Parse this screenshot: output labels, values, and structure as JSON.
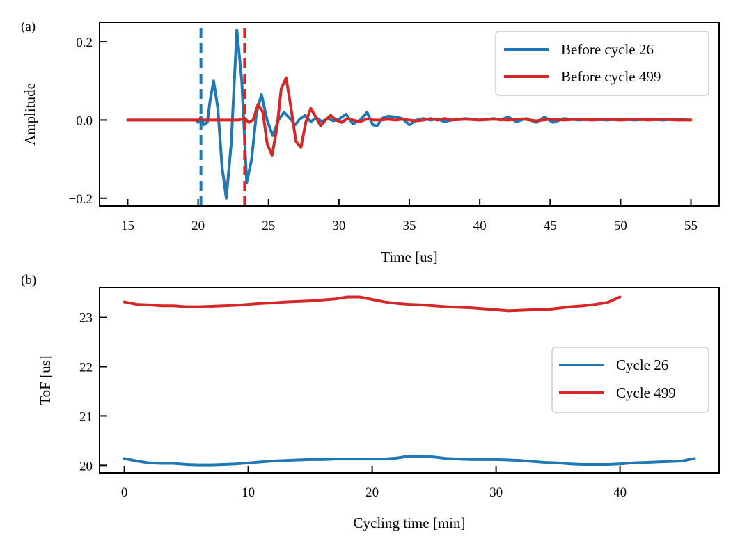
{
  "colors": {
    "blue": "#1f77b4",
    "red": "#d62728"
  },
  "chart_data": [
    {
      "type": "line",
      "panel_label": "(a)",
      "xlabel": "Time [us]",
      "ylabel": "Amplitude",
      "xlim": [
        13,
        57
      ],
      "ylim": [
        -0.22,
        0.25
      ],
      "xticks": [
        15,
        20,
        25,
        30,
        35,
        40,
        45,
        50,
        55
      ],
      "yticks": [
        -0.2,
        0.0,
        0.2
      ],
      "ytick_labels": [
        "−0.2",
        "0.0",
        "0.2"
      ],
      "legend_position": "upper-right",
      "series": [
        {
          "name": "Before cycle 26",
          "color": "#1f77b4",
          "tof_marker": 20.2,
          "x": [
            15,
            19.9,
            20.0,
            20.2,
            20.4,
            20.65,
            20.85,
            21.1,
            21.4,
            21.7,
            22.0,
            22.35,
            22.75,
            23.1,
            23.45,
            23.8,
            24.15,
            24.5,
            24.9,
            25.3,
            25.7,
            26.1,
            26.5,
            26.9,
            27.2,
            27.6,
            28.0,
            28.4,
            28.8,
            29.2,
            29.6,
            30.0,
            30.5,
            31.0,
            31.5,
            32.0,
            32.4,
            32.7,
            33.1,
            33.5,
            34.0,
            34.5,
            35.0,
            35.5,
            36.0,
            36.5,
            37.0,
            37.5,
            38.0,
            39.0,
            40.0,
            41.0,
            41.5,
            42.0,
            42.6,
            43.3,
            44.0,
            44.6,
            45.2,
            46.0,
            47.0,
            48.0,
            49.0,
            50.0,
            51.0,
            52.0,
            53.0,
            54.0,
            55.0
          ],
          "y": [
            0.0,
            0.0,
            -0.006,
            0.008,
            -0.012,
            -0.006,
            0.05,
            0.1,
            0.03,
            -0.12,
            -0.2,
            -0.06,
            0.23,
            0.1,
            -0.16,
            -0.1,
            0.02,
            0.065,
            0.0,
            -0.04,
            0.0,
            0.02,
            0.005,
            -0.012,
            0.002,
            0.012,
            -0.004,
            0.006,
            -0.004,
            0.004,
            -0.002,
            0.002,
            0.015,
            -0.01,
            0.0,
            0.02,
            -0.012,
            -0.015,
            0.005,
            0.01,
            0.008,
            0.004,
            -0.012,
            0.0,
            0.004,
            0.0,
            0.003,
            -0.004,
            0.0,
            0.004,
            0.0,
            0.004,
            0.0,
            0.008,
            -0.004,
            0.004,
            -0.006,
            0.008,
            -0.006,
            0.004,
            0.0,
            0.002,
            0.0,
            0.002,
            0.0,
            0.002,
            0.0,
            0.002,
            0.0
          ]
        },
        {
          "name": "Before cycle 499",
          "color": "#d62728",
          "tof_marker": 23.3,
          "x": [
            15,
            22.9,
            23.3,
            23.6,
            23.9,
            24.25,
            24.6,
            24.9,
            25.25,
            25.6,
            25.9,
            26.25,
            26.6,
            26.95,
            27.3,
            27.65,
            28.0,
            28.35,
            28.7,
            29.05,
            29.4,
            29.8,
            30.2,
            30.6,
            31.0,
            31.5,
            32.0,
            32.5,
            33.0,
            33.5,
            34.0,
            34.5,
            35.0,
            35.5,
            36.0,
            36.5,
            37.0,
            37.5,
            38.0,
            39.0,
            40.0,
            41.0,
            42.0,
            43.0,
            44.0,
            45.0,
            46.0,
            47.0,
            48.0,
            49.0,
            50.0,
            51.0,
            52.0,
            53.0,
            54.0,
            55.0
          ],
          "y": [
            0.0,
            0.0,
            0.005,
            -0.006,
            0.0,
            0.04,
            0.02,
            -0.06,
            -0.09,
            -0.02,
            0.08,
            0.108,
            0.03,
            -0.055,
            -0.07,
            -0.005,
            0.03,
            0.008,
            -0.015,
            0.0,
            0.012,
            0.0,
            -0.006,
            0.004,
            0.0,
            -0.004,
            0.003,
            0.0,
            0.0,
            0.002,
            0.0,
            0.002,
            0.0,
            -0.002,
            0.0,
            0.004,
            0.0,
            0.004,
            0.0,
            0.002,
            0.0,
            0.002,
            0.0,
            0.003,
            -0.002,
            0.002,
            0.0,
            0.002,
            0.0,
            0.002,
            0.0,
            0.002,
            0.0,
            0.002,
            0.0,
            0.0
          ]
        }
      ]
    },
    {
      "type": "line",
      "panel_label": "(b)",
      "xlabel": "Cycling time [min]",
      "ylabel": "ToF [us]",
      "xlim": [
        -2,
        48
      ],
      "ylim": [
        19.85,
        23.6
      ],
      "xticks": [
        0,
        10,
        20,
        30,
        40
      ],
      "yticks": [
        20,
        21,
        22,
        23
      ],
      "legend_position": "center-right",
      "series": [
        {
          "name": "Cycle 26",
          "color": "#1f77b4",
          "x": [
            0,
            1,
            2,
            3,
            4,
            5,
            6,
            7,
            8,
            9,
            10,
            11,
            12,
            13,
            14,
            15,
            16,
            17,
            18,
            19,
            20,
            21,
            22,
            23,
            24,
            25,
            26,
            27,
            28,
            29,
            30,
            31,
            32,
            33,
            34,
            35,
            36,
            37,
            38,
            39,
            40,
            41,
            42,
            43,
            44,
            45,
            46
          ],
          "y": [
            20.14,
            20.09,
            20.05,
            20.04,
            20.04,
            20.02,
            20.01,
            20.01,
            20.02,
            20.03,
            20.05,
            20.07,
            20.09,
            20.1,
            20.11,
            20.12,
            20.12,
            20.13,
            20.13,
            20.13,
            20.13,
            20.13,
            20.15,
            20.19,
            20.18,
            20.17,
            20.14,
            20.13,
            20.12,
            20.12,
            20.12,
            20.11,
            20.1,
            20.08,
            20.06,
            20.05,
            20.03,
            20.02,
            20.02,
            20.02,
            20.03,
            20.05,
            20.06,
            20.07,
            20.08,
            20.09,
            20.14
          ]
        },
        {
          "name": "Cycle 499",
          "color": "#d62728",
          "x": [
            0,
            1,
            2,
            3,
            4,
            5,
            6,
            7,
            8,
            9,
            10,
            11,
            12,
            13,
            14,
            15,
            16,
            17,
            18,
            19,
            20,
            21,
            22,
            23,
            24,
            25,
            26,
            27,
            28,
            29,
            30,
            31,
            32,
            33,
            34,
            35,
            36,
            37,
            38,
            39,
            40
          ],
          "y": [
            23.31,
            23.26,
            23.25,
            23.23,
            23.23,
            23.21,
            23.21,
            23.22,
            23.23,
            23.24,
            23.26,
            23.28,
            23.29,
            23.31,
            23.32,
            23.33,
            23.35,
            23.37,
            23.41,
            23.41,
            23.36,
            23.31,
            23.28,
            23.26,
            23.25,
            23.23,
            23.21,
            23.2,
            23.19,
            23.17,
            23.15,
            23.13,
            23.14,
            23.15,
            23.15,
            23.18,
            23.21,
            23.23,
            23.26,
            23.3,
            23.41
          ]
        }
      ]
    }
  ]
}
